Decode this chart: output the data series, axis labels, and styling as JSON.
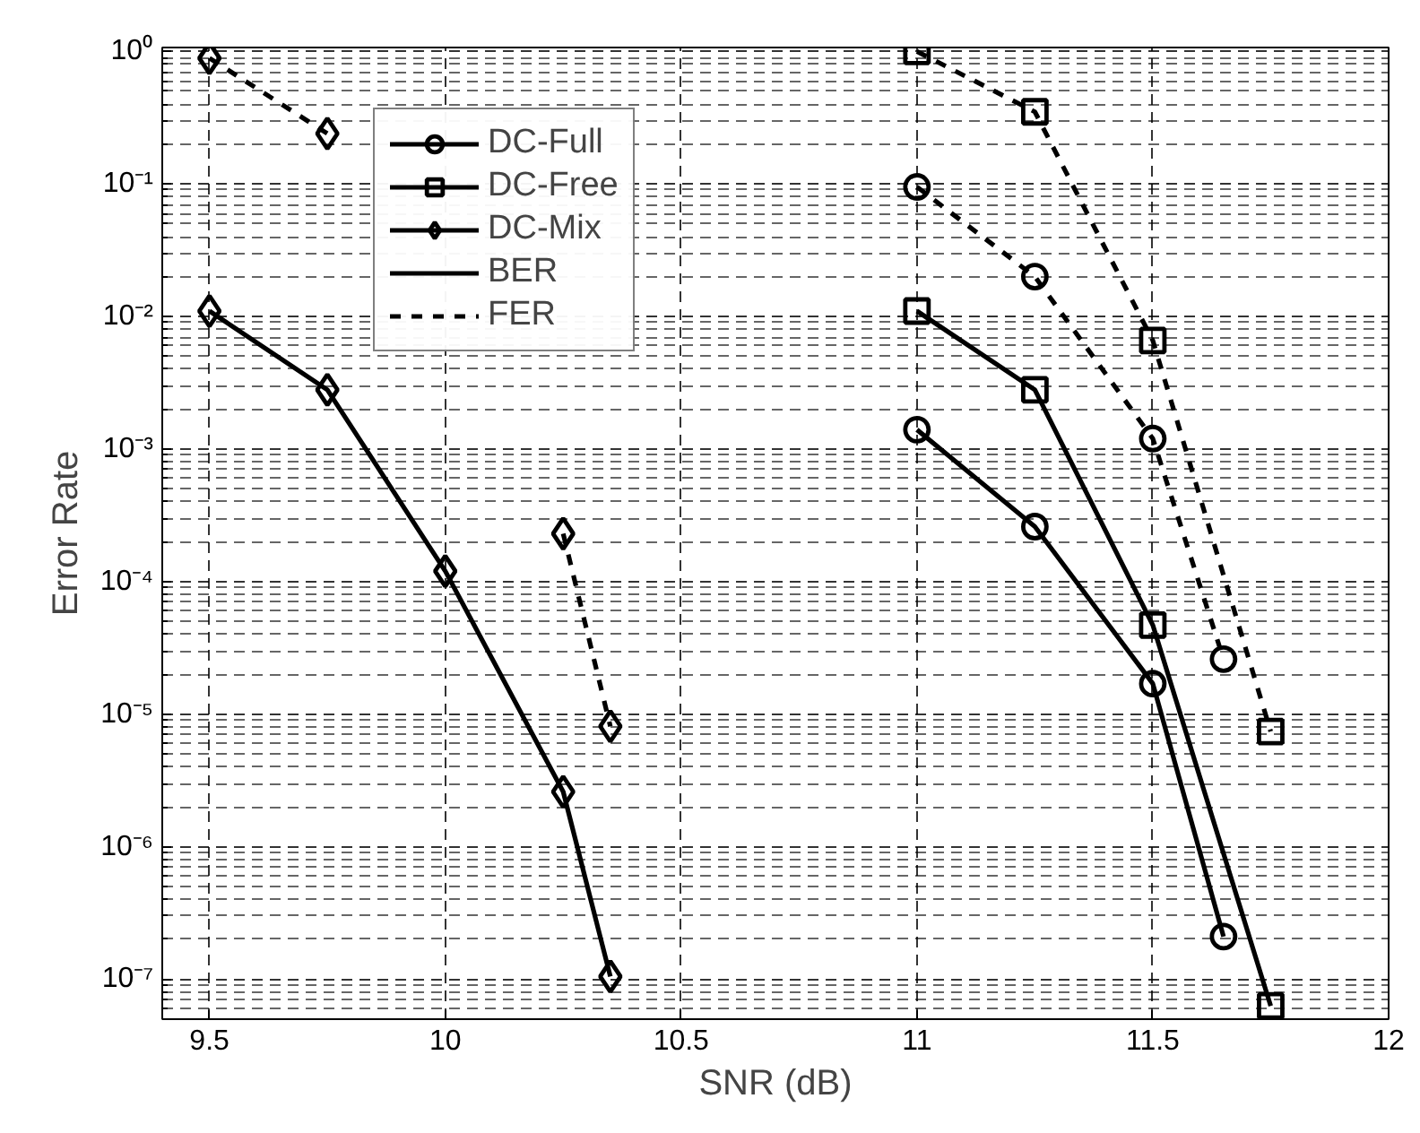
{
  "chart_data": {
    "type": "line",
    "xlabel": "SNR (dB)",
    "ylabel": "Error Rate",
    "xlim": [
      9.4,
      12
    ],
    "xticks": [
      9.5,
      10,
      10.5,
      11,
      11.5,
      12
    ],
    "ylim": [
      5e-08,
      1.07
    ],
    "yticks": [
      {
        "value": 1,
        "label": "10⁰"
      },
      {
        "value": 0.1,
        "label": "10⁻¹"
      },
      {
        "value": 0.01,
        "label": "10⁻²"
      },
      {
        "value": 0.001,
        "label": "10⁻³"
      },
      {
        "value": 0.0001,
        "label": "10⁻⁴"
      },
      {
        "value": 1e-05,
        "label": "10⁻⁵"
      },
      {
        "value": 1e-06,
        "label": "10⁻⁶"
      },
      {
        "value": 1e-07,
        "label": "10⁻⁷"
      }
    ],
    "log": "y",
    "grid": true,
    "legend": "top left",
    "series": [
      {
        "name": "DC-Full",
        "color": "#000000",
        "marker": "circle",
        "line_style": "solid",
        "x": [
          11,
          11.25,
          11.5,
          11.65
        ],
        "values": [
          0.0014,
          0.00026,
          1.7e-05,
          2.1e-07
        ]
      },
      {
        "name": "DC-Free",
        "color": "#000000",
        "marker": "square",
        "line_style": "solid",
        "x": [
          11,
          11.25,
          11.5,
          11.75
        ],
        "values": [
          0.011,
          0.0028,
          4.7e-05,
          6.3e-08
        ]
      },
      {
        "name": "DC-Mix",
        "color": "#000000",
        "marker": "diamond",
        "line_style": "solid",
        "x": [
          9.5,
          9.75,
          10,
          10.25,
          10.35
        ],
        "values": [
          0.011,
          0.0028,
          0.00012,
          2.6e-06,
          1.05e-07
        ]
      },
      {
        "name": "BER",
        "color": "#000000",
        "marker": "none",
        "line_style": "solid"
      },
      {
        "name": "FER",
        "color": "#000000",
        "marker": "none",
        "line_style": "dashed"
      },
      {
        "color": "#000000",
        "marker": "circle",
        "line_style": "dashed",
        "x": [
          11,
          11.25,
          11.5,
          11.65
        ],
        "values": [
          0.095,
          0.02,
          0.0012,
          2.6e-05
        ]
      },
      {
        "color": "#000000",
        "marker": "square",
        "line_style": "dashed",
        "x": [
          11,
          11.25,
          11.5,
          11.75
        ],
        "values": [
          1.0,
          0.35,
          0.0066,
          7.4e-06
        ]
      },
      {
        "color": "#000000",
        "marker": "diamond",
        "line_style": "dashed",
        "x": [
          9.5,
          9.75,
          10,
          10.25,
          10.35
        ],
        "values": [
          0.89,
          0.24,
          null,
          0.00023,
          8.1e-06
        ]
      }
    ]
  }
}
